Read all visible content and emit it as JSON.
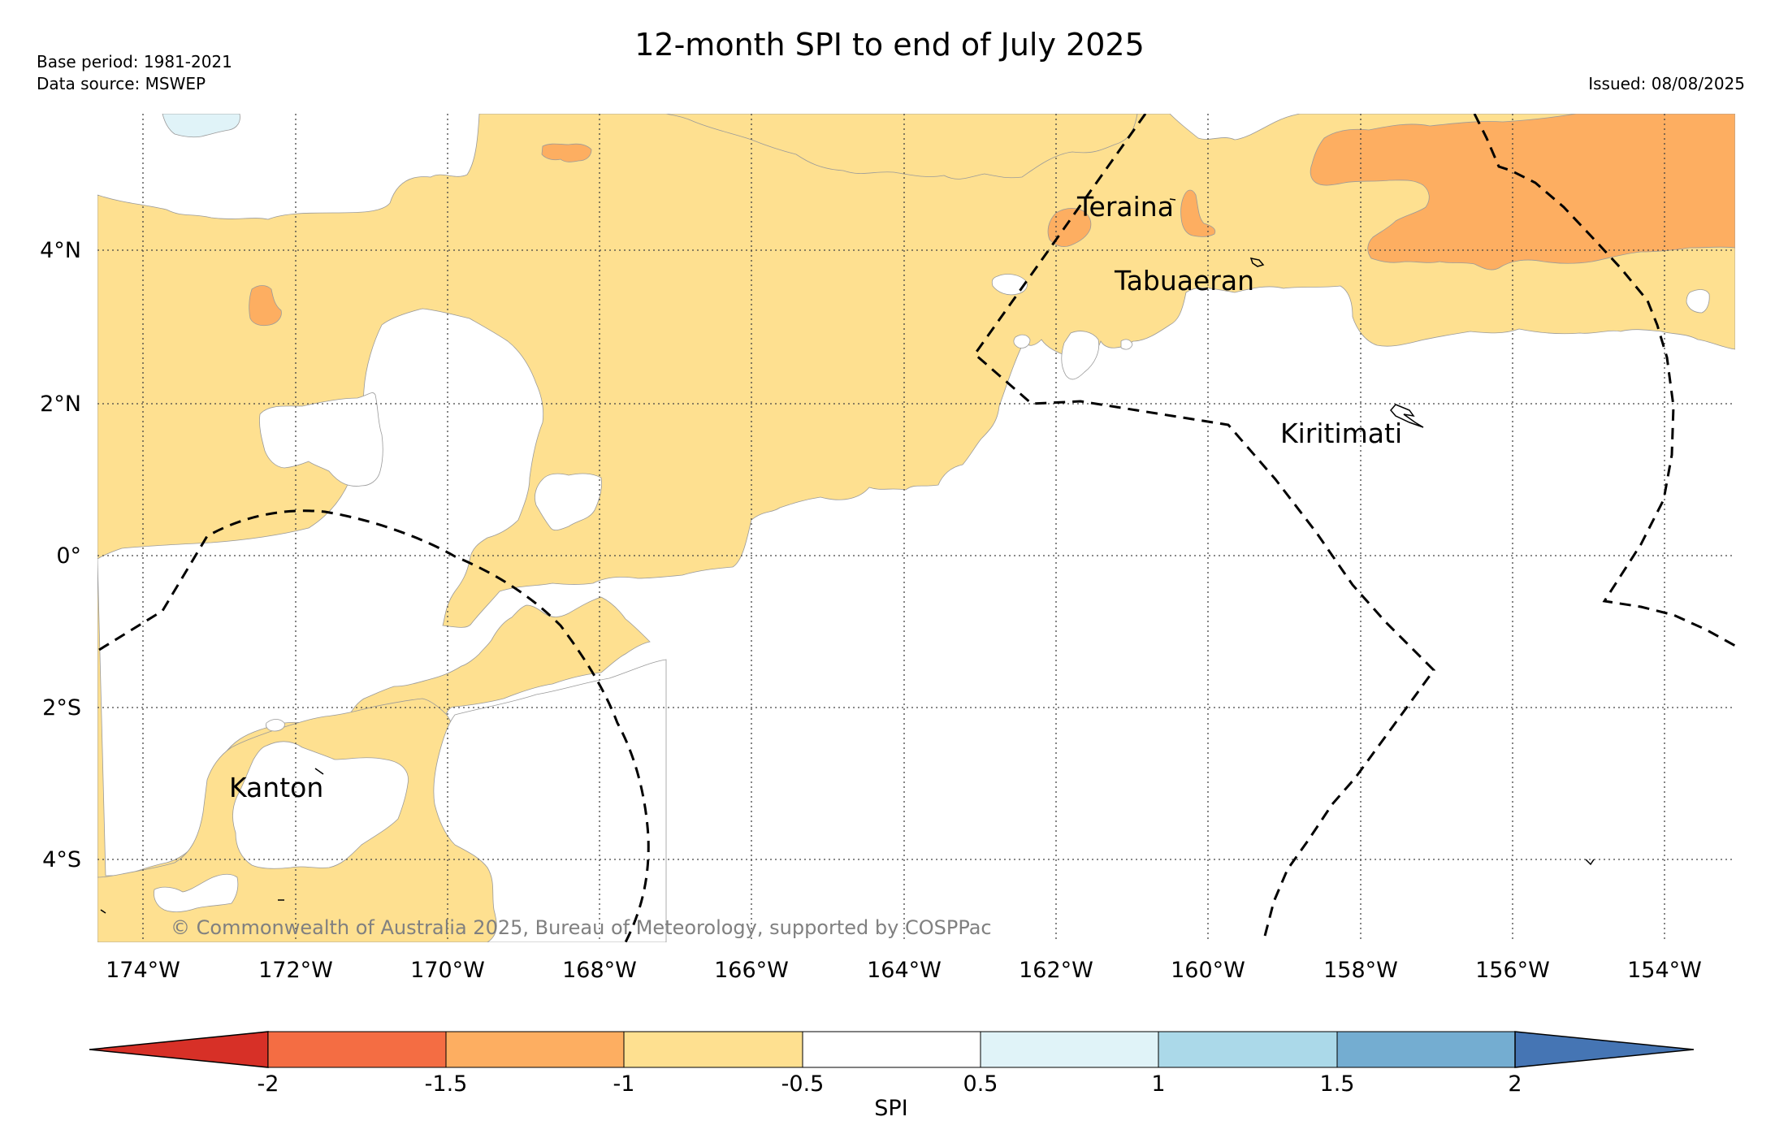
{
  "title": "12-month SPI to end of July 2025",
  "base_period": "Base period: 1981-2021",
  "data_source": "Data source: MSWEP",
  "issued": "Issued: 08/08/2025",
  "credit": "© Commonwealth of Australia 2025, Bureau of Meteorology, supported by COSPPac",
  "places": [
    "Teraina",
    "Tabuaeran",
    "Kiritimati",
    "Kanton"
  ],
  "lon_ticks": [
    "174°W",
    "172°W",
    "170°W",
    "168°W",
    "166°W",
    "164°W",
    "162°W",
    "160°W",
    "158°W",
    "156°W",
    "154°W"
  ],
  "lat_ticks": [
    "4°N",
    "2°N",
    "0°",
    "2°S",
    "4°S"
  ],
  "colorbar": {
    "label": "SPI",
    "ticks": [
      "-2",
      "-1.5",
      "-1",
      "-0.5",
      "0.5",
      "1",
      "1.5",
      "2"
    ],
    "colors": [
      "#d73027",
      "#f46d43",
      "#fdae61",
      "#fee090",
      "#ffffff",
      "#e0f3f8",
      "#abd9e9",
      "#74add1",
      "#4575b4"
    ]
  },
  "colors": {
    "dry_moderate": "#fee090",
    "dry_severe": "#fdae61",
    "wet_slight": "#e0f3f8",
    "normal": "#ffffff"
  }
}
